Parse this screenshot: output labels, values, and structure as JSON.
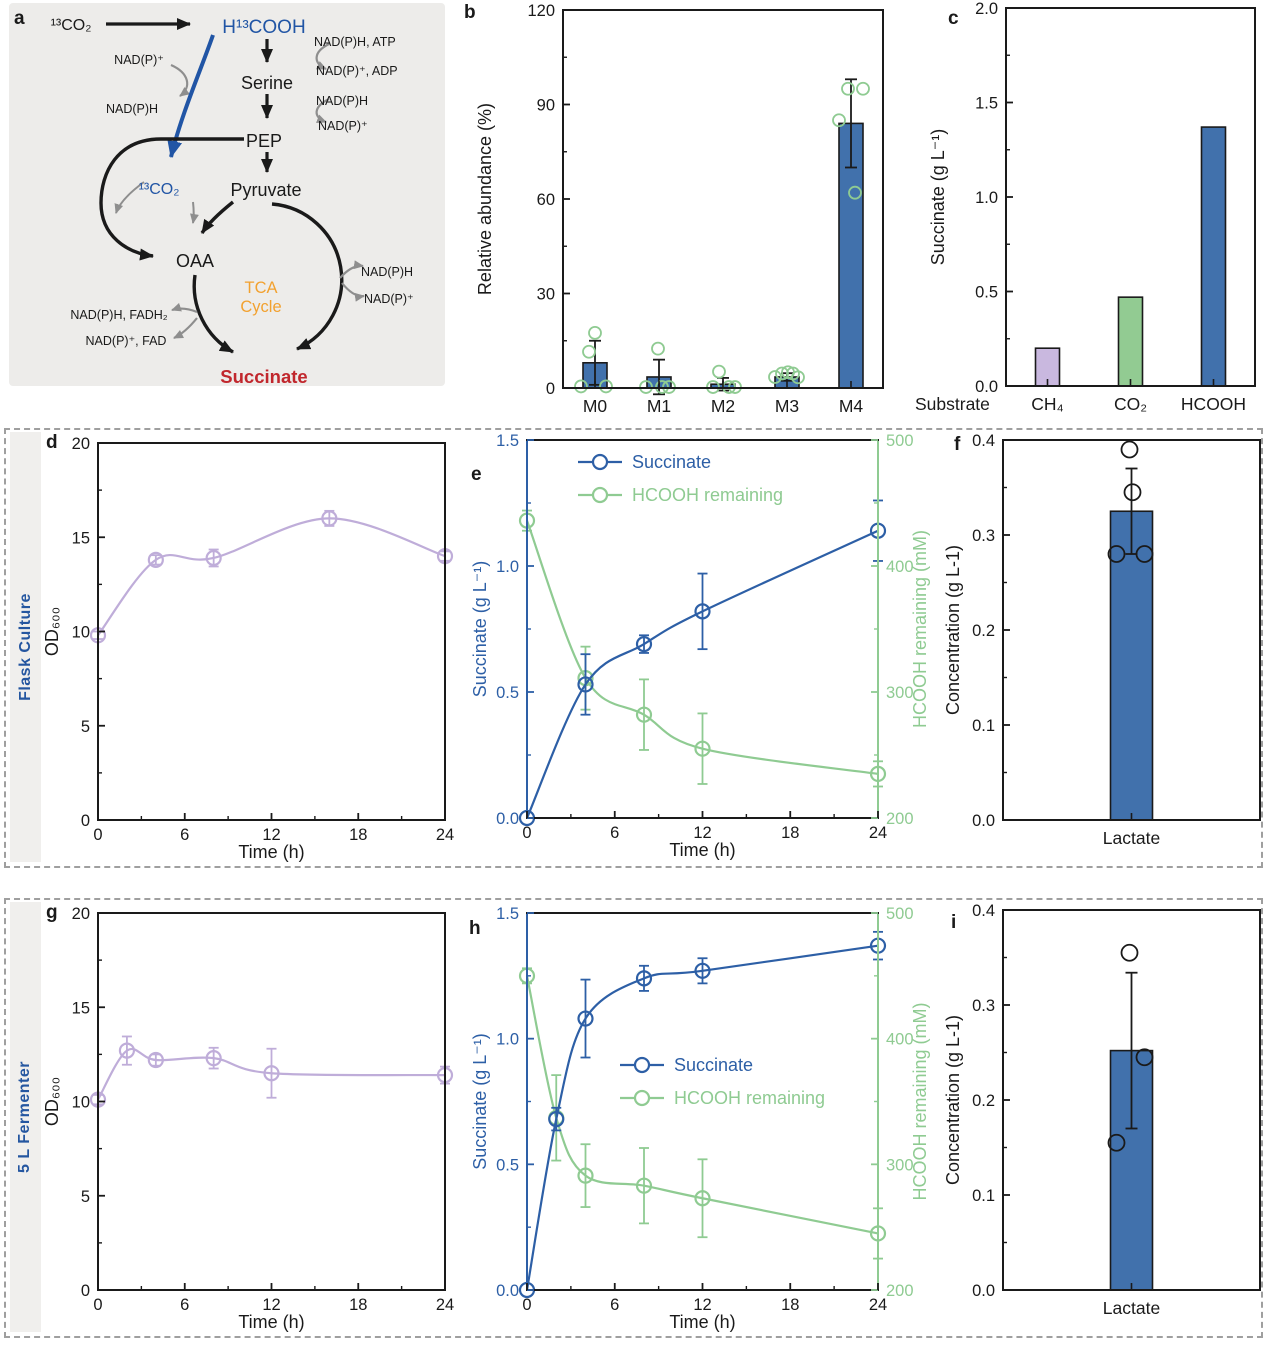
{
  "figure": {
    "panel_letters": {
      "a": "a",
      "b": "b",
      "c": "c",
      "d": "d",
      "e": "e",
      "f": "f",
      "g": "g",
      "h": "h",
      "i": "i"
    },
    "row_labels": {
      "flask": "Flask Culture",
      "fermenter": "5 L Fermenter"
    }
  },
  "palette": {
    "succinate_blue": "#2D5FA6",
    "bar_blue": "#4171AC",
    "hcooh_green": "#8FCB92",
    "bar_green": "#92CB92",
    "od_purple": "#BFADD9",
    "bar_purple": "#C9B8DF",
    "diagram_blue": "#2155A5",
    "tca_orange": "#F2A12F",
    "succinate_red": "#C1272D",
    "arrow_gray": "#8E8E8E",
    "ink": "#1a1a1a"
  },
  "diagram": {
    "labels": {
      "co2_top": "¹³CO₂",
      "hcooh": "H¹³COOH",
      "nadph_atp": "NAD(P)H, ATP",
      "nadp_adp": "NAD(P)⁺, ADP",
      "serine": "Serine",
      "nadph_r1": "NAD(P)H",
      "nadp_r1": "NAD(P)⁺",
      "pep": "PEP",
      "nadp_left": "NAD(P)⁺",
      "nadph_left": "NAD(P)H",
      "co2_mid": "¹³CO₂",
      "pyruvate": "Pyruvate",
      "oaa": "OAA",
      "tca_1": "TCA",
      "tca_2": "Cycle",
      "nadph_r2": "NAD(P)H",
      "nadp_r2": "NAD(P)⁺",
      "nadph_fadh2": "NAD(P)H, FADH₂",
      "nadp_fad": "NAD(P)⁺, FAD",
      "succinate": "Succinate"
    }
  },
  "chart_data": [
    {
      "id": "b",
      "type": "bar",
      "ylabel": "Relative abundance (%)",
      "ylim": [
        0,
        120
      ],
      "yticks": [
        0,
        30,
        60,
        90,
        120
      ],
      "ydecimals": 0,
      "categories": [
        "M0",
        "M1",
        "M2",
        "M3",
        "M4"
      ],
      "values": [
        8,
        3.5,
        1.2,
        3.5,
        84
      ],
      "errors": [
        7,
        5.5,
        2,
        1.2,
        14
      ],
      "bar_color": "#4171AC",
      "scatter_color": "#8FCB92",
      "scatter_r": 6,
      "scatter": [
        [
          [
            -14,
            0.5
          ],
          [
            11,
            0.5
          ],
          [
            -6,
            11.5
          ],
          [
            0,
            17.5
          ]
        ],
        [
          [
            -13,
            0.3
          ],
          [
            3,
            0.3
          ],
          [
            10,
            0.3
          ],
          [
            -1,
            12.5
          ]
        ],
        [
          [
            -10,
            0.3
          ],
          [
            6,
            0.3
          ],
          [
            12,
            0.3
          ],
          [
            -4,
            5.2
          ]
        ],
        [
          [
            -12,
            3.5
          ],
          [
            -5,
            4.6
          ],
          [
            1,
            5
          ],
          [
            6,
            4.6
          ],
          [
            11,
            3.4
          ]
        ],
        [
          [
            -12,
            85
          ],
          [
            -3,
            95
          ],
          [
            12,
            95
          ],
          [
            4,
            62
          ]
        ]
      ]
    },
    {
      "id": "c",
      "type": "bar",
      "ylabel": "Succinate (g L⁻¹)",
      "xlabel_row": "Substrate",
      "ylim": [
        0,
        2
      ],
      "yticks": [
        0,
        0.5,
        1,
        1.5,
        2
      ],
      "ydecimals": 1,
      "categories": [
        "CH₄",
        "CO₂",
        "HCOOH"
      ],
      "values": [
        0.2,
        0.47,
        1.37
      ],
      "bar_colors": [
        "#C9B8DF",
        "#92CB92",
        "#4171AC"
      ]
    },
    {
      "id": "d",
      "type": "line",
      "xlabel": "Time (h)",
      "ylabel": "OD₆₀₀",
      "xlim": [
        0,
        24
      ],
      "xticks": [
        0,
        6,
        12,
        18,
        24
      ],
      "ylim": [
        0,
        20
      ],
      "yticks": [
        0,
        5,
        10,
        15,
        20
      ],
      "ydecimals": 0,
      "series": [
        {
          "name": "OD600",
          "axis": "left",
          "color": "#BFADD9",
          "x": [
            0,
            4,
            8,
            16,
            24
          ],
          "y": [
            9.8,
            13.8,
            13.9,
            16,
            14
          ],
          "err": [
            0.2,
            0.25,
            0.45,
            0.4,
            0.25
          ]
        }
      ]
    },
    {
      "id": "e",
      "type": "dual",
      "xlabel": "Time (h)",
      "ylabel": "Succinate (g L⁻¹)",
      "ylabel_right": "HCOOH remaining (mM)",
      "xlim": [
        0,
        24
      ],
      "xticks": [
        0,
        6,
        12,
        18,
        24
      ],
      "ylim": [
        0,
        1.5
      ],
      "yticks": [
        0,
        0.5,
        1,
        1.5
      ],
      "ydecimals": 1,
      "ylim_right": [
        200,
        500
      ],
      "yticks_right": [
        200,
        300,
        400,
        500
      ],
      "ydecimals_right": 0,
      "axis_colors": {
        "left": "#2D5FA6",
        "right": "#8FCB92"
      },
      "spine_colors": {
        "left": "#2D5FA6",
        "right": "#8FCB92"
      },
      "legend": [
        {
          "label": "Succinate",
          "color": "#2D5FA6"
        },
        {
          "label": "HCOOH remaining",
          "color": "#8FCB92"
        }
      ],
      "series": [
        {
          "name": "HCOOH remaining",
          "axis": "right",
          "color": "#8FCB92",
          "x": [
            0,
            4,
            8,
            12,
            24
          ],
          "y": [
            436,
            311,
            282,
            255,
            235
          ],
          "err": [
            8,
            25,
            28,
            28,
            10
          ]
        },
        {
          "name": "Succinate",
          "axis": "left",
          "color": "#2D5FA6",
          "x": [
            0,
            4,
            8,
            12,
            24
          ],
          "y": [
            0,
            0.53,
            0.69,
            0.82,
            1.14
          ],
          "err": [
            0,
            0.12,
            0.035,
            0.15,
            0.12
          ]
        }
      ]
    },
    {
      "id": "f",
      "type": "bar",
      "ylabel": "Concentration (g L-1)",
      "ylim": [
        0,
        0.4
      ],
      "yticks": [
        0,
        0.1,
        0.2,
        0.3,
        0.4
      ],
      "ydecimals": 1,
      "categories": [
        "Lactate"
      ],
      "values": [
        0.325
      ],
      "errors": [
        0.045
      ],
      "bar_color": "#4171AC",
      "scatter_color": "#1a1a1a",
      "scatter_r": 8,
      "scatter": [
        [
          [
            -2,
            0.39
          ],
          [
            1,
            0.345
          ],
          [
            -15,
            0.28
          ],
          [
            13,
            0.28
          ]
        ]
      ]
    },
    {
      "id": "g",
      "type": "line",
      "xlabel": "Time (h)",
      "ylabel": "OD₆₀₀",
      "xlim": [
        0,
        24
      ],
      "xticks": [
        0,
        6,
        12,
        18,
        24
      ],
      "ylim": [
        0,
        20
      ],
      "yticks": [
        0,
        5,
        10,
        15,
        20
      ],
      "ydecimals": 0,
      "series": [
        {
          "name": "OD600",
          "axis": "left",
          "color": "#BFADD9",
          "x": [
            0,
            2,
            4,
            8,
            12,
            24
          ],
          "y": [
            10.1,
            12.7,
            12.2,
            12.3,
            11.5,
            11.4
          ],
          "err": [
            0.25,
            0.75,
            0.3,
            0.55,
            1.3,
            0.45
          ]
        }
      ]
    },
    {
      "id": "h",
      "type": "dual",
      "xlabel": "Time (h)",
      "ylabel": "Succinate (g L⁻¹)",
      "ylabel_right": "HCOOH remaining (mM)",
      "xlim": [
        0,
        24
      ],
      "xticks": [
        0,
        6,
        12,
        18,
        24
      ],
      "ylim": [
        0,
        1.5
      ],
      "yticks": [
        0,
        0.5,
        1,
        1.5
      ],
      "ydecimals": 1,
      "ylim_right": [
        200,
        500
      ],
      "yticks_right": [
        200,
        300,
        400,
        500
      ],
      "ydecimals_right": 0,
      "axis_colors": {
        "left": "#2D5FA6",
        "right": "#8FCB92"
      },
      "spine_colors": {
        "left": "#2D5FA6",
        "right": "#8FCB92"
      },
      "legend": [
        {
          "label": "Succinate",
          "color": "#2D5FA6"
        },
        {
          "label": "HCOOH remaining",
          "color": "#8FCB92"
        }
      ],
      "series": [
        {
          "name": "HCOOH remaining",
          "axis": "right",
          "color": "#8FCB92",
          "x": [
            0,
            2,
            4,
            8,
            12,
            24
          ],
          "y": [
            450,
            337,
            291,
            283,
            273,
            245
          ],
          "err": [
            6,
            34,
            25,
            30,
            31,
            20
          ]
        },
        {
          "name": "Succinate",
          "axis": "left",
          "color": "#2D5FA6",
          "x": [
            0,
            2,
            4,
            8,
            12,
            24
          ],
          "y": [
            0,
            0.68,
            1.08,
            1.24,
            1.27,
            1.37
          ],
          "err": [
            0,
            0.045,
            0.155,
            0.05,
            0.05,
            0.055
          ]
        }
      ]
    },
    {
      "id": "i",
      "type": "bar",
      "ylabel": "Concentration (g L-1)",
      "ylim": [
        0,
        0.4
      ],
      "yticks": [
        0,
        0.1,
        0.2,
        0.3,
        0.4
      ],
      "ydecimals": 1,
      "categories": [
        "Lactate"
      ],
      "values": [
        0.252
      ],
      "errors": [
        0.082
      ],
      "bar_color": "#4171AC",
      "scatter_color": "#1a1a1a",
      "scatter_r": 8,
      "scatter": [
        [
          [
            -2,
            0.355
          ],
          [
            13,
            0.245
          ],
          [
            -15,
            0.155
          ]
        ]
      ]
    }
  ]
}
